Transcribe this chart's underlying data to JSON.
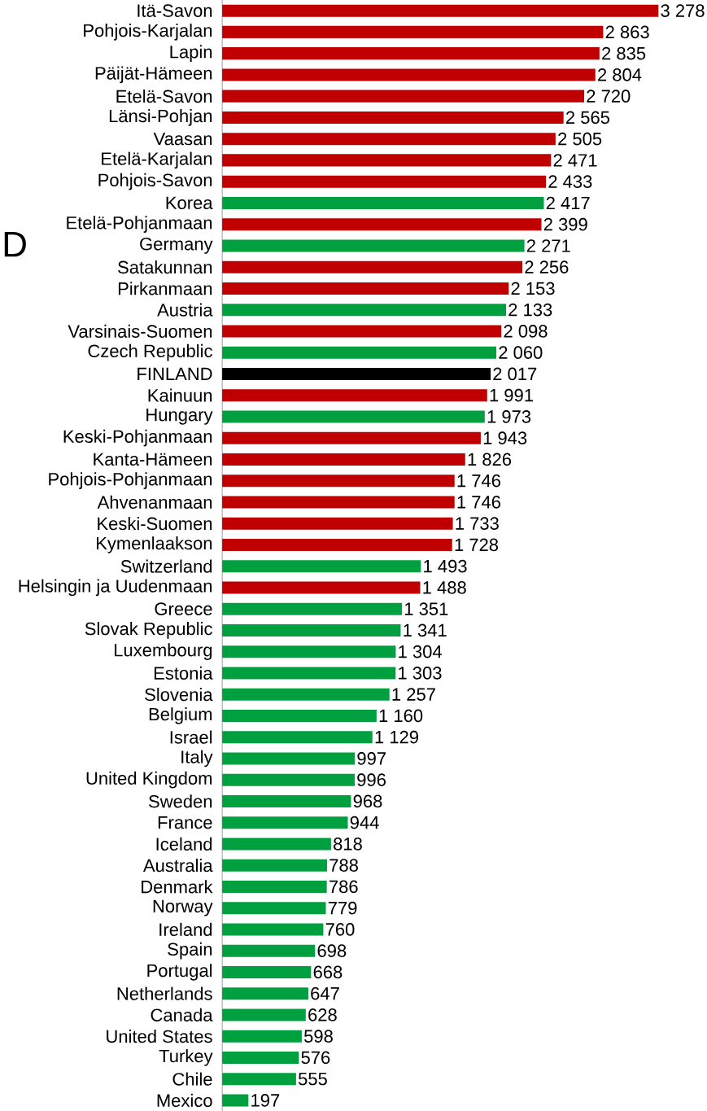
{
  "chart_data": {
    "type": "bar",
    "orientation": "horizontal",
    "annotations": [
      "D"
    ],
    "categories": [
      "Itä-Savon",
      "Pohjois-Karjalan",
      "Lapin",
      "Päijät-Hämeen",
      "Etelä-Savon",
      "Länsi-Pohjan",
      "Vaasan",
      "Etelä-Karjalan",
      "Pohjois-Savon",
      "Korea",
      "Etelä-Pohjanmaan",
      "Germany",
      "Satakunnan",
      "Pirkanmaan",
      "Austria",
      "Varsinais-Suomen",
      "Czech Republic",
      "FINLAND",
      "Kainuun",
      "Hungary",
      "Keski-Pohjanmaan",
      "Kanta-Hämeen",
      "Pohjois-Pohjanmaan",
      "Ahvenanmaan",
      "Keski-Suomen",
      "Kymenlaakson",
      "Switzerland",
      "Helsingin ja Uudenmaan",
      "Greece",
      "Slovak Republic",
      "Luxembourg",
      "Estonia",
      "Slovenia",
      "Belgium",
      "Israel",
      "Italy",
      "United Kingdom",
      "Sweden",
      "France",
      "Iceland",
      "Australia",
      "Denmark",
      "Norway",
      "Ireland",
      "Spain",
      "Portugal",
      "Netherlands",
      "Canada",
      "United States",
      "Turkey",
      "Chile",
      "Mexico"
    ],
    "values": [
      3278,
      2863,
      2835,
      2804,
      2720,
      2565,
      2505,
      2471,
      2433,
      2417,
      2399,
      2271,
      2256,
      2153,
      2133,
      2098,
      2060,
      2017,
      1991,
      1973,
      1943,
      1826,
      1746,
      1746,
      1733,
      1728,
      1493,
      1488,
      1351,
      1341,
      1304,
      1303,
      1257,
      1160,
      1129,
      997,
      996,
      968,
      944,
      818,
      788,
      786,
      779,
      760,
      698,
      668,
      647,
      628,
      598,
      576,
      555,
      197
    ],
    "value_labels": [
      "3 278",
      "2 863",
      "2 835",
      "2 804",
      "2 720",
      "2 565",
      "2 505",
      "2 471",
      "2 433",
      "2 417",
      "2 399",
      "2 271",
      "2 256",
      "2 153",
      "2 133",
      "2 098",
      "2 060",
      "2 017",
      "1 991",
      "1 973",
      "1 943",
      "1 826",
      "1 746",
      "1 746",
      "1 733",
      "1 728",
      "1 493",
      "1 488",
      "1 351",
      "1 341",
      "1 304",
      "1 303",
      "1 257",
      "1 160",
      "1 129",
      "997",
      "996",
      "968",
      "944",
      "818",
      "788",
      "786",
      "779",
      "760",
      "698",
      "668",
      "647",
      "628",
      "598",
      "576",
      "555",
      "197"
    ],
    "colors": [
      "#c00000",
      "#c00000",
      "#c00000",
      "#c00000",
      "#c00000",
      "#c00000",
      "#c00000",
      "#c00000",
      "#c00000",
      "#00a040",
      "#c00000",
      "#00a040",
      "#c00000",
      "#c00000",
      "#00a040",
      "#c00000",
      "#00a040",
      "#000000",
      "#c00000",
      "#00a040",
      "#c00000",
      "#c00000",
      "#c00000",
      "#c00000",
      "#c00000",
      "#c00000",
      "#00a040",
      "#c00000",
      "#00a040",
      "#00a040",
      "#00a040",
      "#00a040",
      "#00a040",
      "#00a040",
      "#00a040",
      "#00a040",
      "#00a040",
      "#00a040",
      "#00a040",
      "#00a040",
      "#00a040",
      "#00a040",
      "#00a040",
      "#00a040",
      "#00a040",
      "#00a040",
      "#00a040",
      "#00a040",
      "#00a040",
      "#00a040",
      "#00a040",
      "#00a040"
    ]
  }
}
